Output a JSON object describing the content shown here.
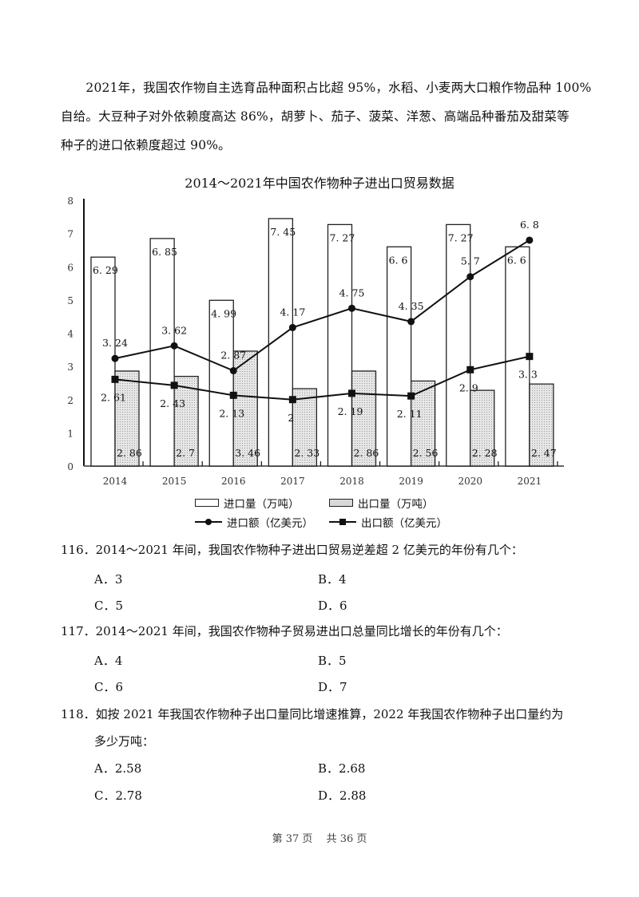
{
  "intro": {
    "lines": [
      "　　2021年，我国农作物自主选育品种面积占比超 95%，水稻、小麦两大口粮作物品种 100%",
      "自给。大豆种子对外依赖度高达 86%，胡萝卜、茄子、菠菜、洋葱、高端品种番茄及甜菜等",
      "种子的进口依赖度超过 90%。"
    ]
  },
  "chart_data": {
    "type": "bar",
    "title": "2014～2021年中国农作物种子进出口贸易数据",
    "xlabel": "",
    "ylabel": "",
    "ylim": [
      0,
      8
    ],
    "yticks": [
      0,
      1,
      2,
      3,
      4,
      5,
      6,
      7,
      8
    ],
    "grid": false,
    "legend_position": "bottom",
    "categories": [
      "2014",
      "2015",
      "2016",
      "2017",
      "2018",
      "2019",
      "2020",
      "2021"
    ],
    "series": [
      {
        "name": "进口量（万吨）",
        "type": "bar",
        "style": "white",
        "values": [
          6.29,
          6.85,
          4.99,
          7.45,
          7.27,
          6.6,
          7.27,
          6.6
        ]
      },
      {
        "name": "出口量（万吨）",
        "type": "bar",
        "style": "hatched",
        "values": [
          2.86,
          2.7,
          3.46,
          2.33,
          2.86,
          2.56,
          2.28,
          2.47
        ]
      },
      {
        "name": "进口额（亿美元）",
        "type": "line",
        "marker": "circle",
        "values": [
          3.24,
          3.62,
          2.87,
          4.17,
          4.75,
          4.35,
          5.7,
          6.8
        ]
      },
      {
        "name": "出口额（亿美元）",
        "type": "line",
        "marker": "square",
        "values": [
          2.61,
          2.43,
          2.13,
          2,
          2.19,
          2.11,
          2.9,
          3.3
        ]
      }
    ]
  },
  "legend": {
    "import_volume": "进口量（万吨）",
    "export_volume": "出口量（万吨）",
    "import_value": "进口额（亿美元）",
    "export_value": "出口额（亿美元）"
  },
  "questions": [
    {
      "stem": "116．2014～2021 年间，我国农作物种子进出口贸易逆差超 2 亿美元的年份有几个：",
      "options": [
        "A．3",
        "B．4",
        "C．5",
        "D．6"
      ]
    },
    {
      "stem": "117．2014～2021 年间，我国农作物种子贸易进出口总量同比增长的年份有几个：",
      "options": [
        "A．4",
        "B．5",
        "C．6",
        "D．7"
      ]
    },
    {
      "stem": "118．如按 2021 年我国农作物种子出口量同比增速推算，2022 年我国农作物种子出口量约为",
      "stem2": "多少万吨：",
      "options": [
        "A．2.58",
        "B．2.68",
        "C．2.78",
        "D．2.88"
      ]
    }
  ],
  "footer": "第 37 页　 共 36 页"
}
